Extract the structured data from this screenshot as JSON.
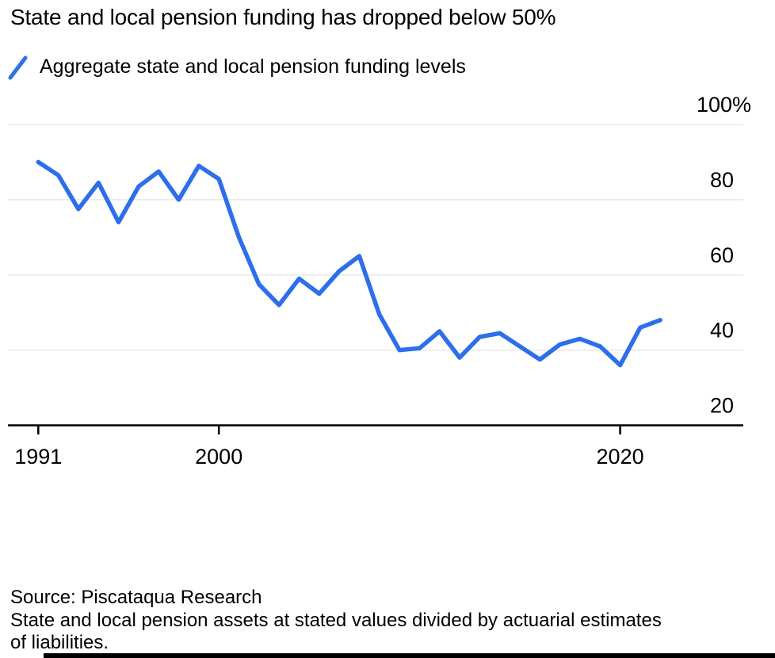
{
  "title": "State and local pension funding has dropped below 50%",
  "legend": {
    "label": "Aggregate state and local pension funding levels"
  },
  "colors": {
    "line": "#2d6feb",
    "grid": "#e9e9e9",
    "axis": "#000000",
    "text": "#000000"
  },
  "chart_data": {
    "type": "line",
    "title": "State and local pension funding has dropped below 50%",
    "series_name": "Aggregate state and local pension funding levels",
    "x": [
      1991,
      1992,
      1993,
      1994,
      1995,
      1996,
      1997,
      1998,
      1999,
      2000,
      2001,
      2002,
      2003,
      2004,
      2005,
      2006,
      2007,
      2008,
      2009,
      2010,
      2011,
      2012,
      2013,
      2014,
      2015,
      2016,
      2017,
      2018,
      2019,
      2020,
      2021,
      2022
    ],
    "values": [
      90,
      86.5,
      77.5,
      84.5,
      74,
      83.5,
      87.5,
      80,
      89,
      85.5,
      70,
      57.5,
      52,
      59,
      55,
      61,
      65,
      49.5,
      40,
      40.5,
      45,
      38,
      43.5,
      44.5,
      41,
      37.5,
      41.5,
      43,
      41,
      36,
      46,
      48
    ],
    "unit": "%",
    "ylim": [
      20,
      100
    ],
    "yticks": [
      {
        "value": 100,
        "label": "100%"
      },
      {
        "value": 80,
        "label": "80"
      },
      {
        "value": 60,
        "label": "60"
      },
      {
        "value": 40,
        "label": "40"
      },
      {
        "value": 20,
        "label": "20"
      }
    ],
    "xticks": [
      {
        "year": 1991,
        "label": "1991"
      },
      {
        "year": 2000,
        "label": "2000"
      },
      {
        "year": 2020,
        "label": "2020"
      }
    ],
    "grid": "horizontal",
    "legend_position": "top-left",
    "yaxis_side": "right"
  },
  "footer": {
    "source": "Source: Piscataqua Research",
    "note_lines": [
      "State and local pension assets at stated values divided by actuarial estimates",
      "of liabilities."
    ]
  }
}
